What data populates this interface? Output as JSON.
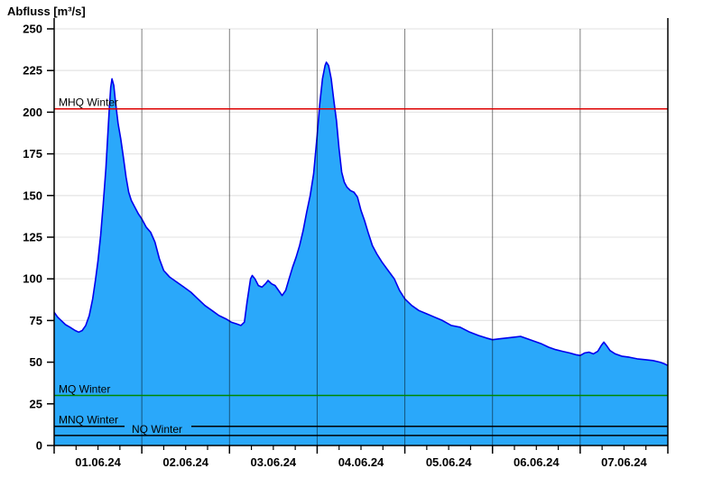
{
  "title": "Abfluss [m³/s]",
  "chart_data": {
    "type": "area",
    "title": "Abfluss [m³/s]",
    "ylabel": "Abfluss [m³/s]",
    "xlabel": "",
    "grid": true,
    "legend": false,
    "y_axis": {
      "min": 0,
      "max": 250,
      "tick_step": 25,
      "ticks": [
        0,
        25,
        50,
        75,
        100,
        125,
        150,
        175,
        200,
        225,
        250
      ]
    },
    "x_axis": {
      "range_days": 7,
      "minor_ticks_per_day": 4,
      "tick_labels": [
        "01.06.24",
        "02.06.24",
        "03.06.24",
        "04.06.24",
        "05.06.24",
        "06.06.24",
        "07.06.24"
      ]
    },
    "series": [
      {
        "name": "Abfluss",
        "unit": "m³/s",
        "points": [
          [
            0.0,
            80
          ],
          [
            0.04,
            77
          ],
          [
            0.08,
            75
          ],
          [
            0.13,
            72.5
          ],
          [
            0.18,
            71
          ],
          [
            0.24,
            69
          ],
          [
            0.28,
            68
          ],
          [
            0.32,
            69
          ],
          [
            0.36,
            72
          ],
          [
            0.4,
            78
          ],
          [
            0.44,
            88
          ],
          [
            0.47,
            99
          ],
          [
            0.5,
            111
          ],
          [
            0.53,
            126
          ],
          [
            0.56,
            145
          ],
          [
            0.59,
            166
          ],
          [
            0.61,
            185
          ],
          [
            0.63,
            203
          ],
          [
            0.645,
            215
          ],
          [
            0.66,
            220
          ],
          [
            0.68,
            216
          ],
          [
            0.7,
            206
          ],
          [
            0.73,
            193
          ],
          [
            0.76,
            184
          ],
          [
            0.79,
            173
          ],
          [
            0.82,
            161
          ],
          [
            0.85,
            152
          ],
          [
            0.88,
            147
          ],
          [
            0.92,
            143
          ],
          [
            0.96,
            139
          ],
          [
            1.0,
            136
          ],
          [
            1.05,
            131
          ],
          [
            1.1,
            128
          ],
          [
            1.15,
            122
          ],
          [
            1.2,
            112
          ],
          [
            1.25,
            105
          ],
          [
            1.32,
            101
          ],
          [
            1.4,
            98
          ],
          [
            1.48,
            95
          ],
          [
            1.56,
            92
          ],
          [
            1.64,
            88
          ],
          [
            1.72,
            84
          ],
          [
            1.8,
            81
          ],
          [
            1.88,
            78
          ],
          [
            1.96,
            76
          ],
          [
            2.02,
            74
          ],
          [
            2.08,
            73
          ],
          [
            2.13,
            72
          ],
          [
            2.17,
            74
          ],
          [
            2.2,
            86
          ],
          [
            2.24,
            100
          ],
          [
            2.26,
            102
          ],
          [
            2.29,
            100
          ],
          [
            2.33,
            96
          ],
          [
            2.37,
            95
          ],
          [
            2.41,
            97
          ],
          [
            2.44,
            99
          ],
          [
            2.48,
            97
          ],
          [
            2.52,
            96
          ],
          [
            2.56,
            93
          ],
          [
            2.6,
            90
          ],
          [
            2.64,
            93
          ],
          [
            2.68,
            100
          ],
          [
            2.72,
            107
          ],
          [
            2.76,
            113
          ],
          [
            2.8,
            120
          ],
          [
            2.84,
            129
          ],
          [
            2.88,
            140
          ],
          [
            2.92,
            150
          ],
          [
            2.96,
            163
          ],
          [
            3.0,
            186
          ],
          [
            3.03,
            205
          ],
          [
            3.06,
            220
          ],
          [
            3.09,
            228
          ],
          [
            3.105,
            230
          ],
          [
            3.13,
            228
          ],
          [
            3.16,
            220
          ],
          [
            3.19,
            207
          ],
          [
            3.22,
            195
          ],
          [
            3.25,
            178
          ],
          [
            3.28,
            164
          ],
          [
            3.31,
            158
          ],
          [
            3.34,
            155
          ],
          [
            3.38,
            153
          ],
          [
            3.42,
            152
          ],
          [
            3.46,
            149
          ],
          [
            3.5,
            141
          ],
          [
            3.54,
            135
          ],
          [
            3.58,
            128
          ],
          [
            3.63,
            120
          ],
          [
            3.68,
            115
          ],
          [
            3.74,
            110
          ],
          [
            3.81,
            105
          ],
          [
            3.88,
            100
          ],
          [
            3.94,
            93
          ],
          [
            4.0,
            88
          ],
          [
            4.08,
            84
          ],
          [
            4.16,
            81
          ],
          [
            4.25,
            79
          ],
          [
            4.34,
            77
          ],
          [
            4.43,
            75
          ],
          [
            4.53,
            72
          ],
          [
            4.63,
            71
          ],
          [
            4.74,
            68
          ],
          [
            4.84,
            66
          ],
          [
            4.93,
            64.5
          ],
          [
            5.0,
            63.5
          ],
          [
            5.08,
            64
          ],
          [
            5.16,
            64.5
          ],
          [
            5.24,
            65
          ],
          [
            5.32,
            65.5
          ],
          [
            5.4,
            64
          ],
          [
            5.48,
            62.5
          ],
          [
            5.56,
            61
          ],
          [
            5.64,
            59
          ],
          [
            5.72,
            57.5
          ],
          [
            5.8,
            56.5
          ],
          [
            5.88,
            55.5
          ],
          [
            5.95,
            54.5
          ],
          [
            6.0,
            54
          ],
          [
            6.05,
            55.5
          ],
          [
            6.1,
            56
          ],
          [
            6.15,
            55
          ],
          [
            6.2,
            56.5
          ],
          [
            6.24,
            60
          ],
          [
            6.27,
            62
          ],
          [
            6.3,
            60
          ],
          [
            6.34,
            57
          ],
          [
            6.4,
            55
          ],
          [
            6.48,
            53.5
          ],
          [
            6.56,
            53
          ],
          [
            6.65,
            52
          ],
          [
            6.74,
            51.5
          ],
          [
            6.83,
            51
          ],
          [
            6.91,
            50
          ],
          [
            6.96,
            49
          ],
          [
            7.0,
            48
          ]
        ]
      }
    ],
    "reference_lines": [
      {
        "label": "MHQ Winter",
        "value": 202,
        "color": "#dd0000"
      },
      {
        "label": "MQ Winter",
        "value": 30,
        "color": "#008800"
      },
      {
        "label": "MNQ Winter",
        "value": 11.5,
        "color": "#000000"
      },
      {
        "label": "NQ Winter",
        "value": 6,
        "color": "#000000"
      }
    ],
    "colors": {
      "area_fill": "#2aa8fa",
      "area_stroke": "#0000ee",
      "horizontal_grid": "#e6e6e6",
      "vertical_grid": "rgba(0,0,0,0.5)",
      "axis": "#000000"
    }
  }
}
